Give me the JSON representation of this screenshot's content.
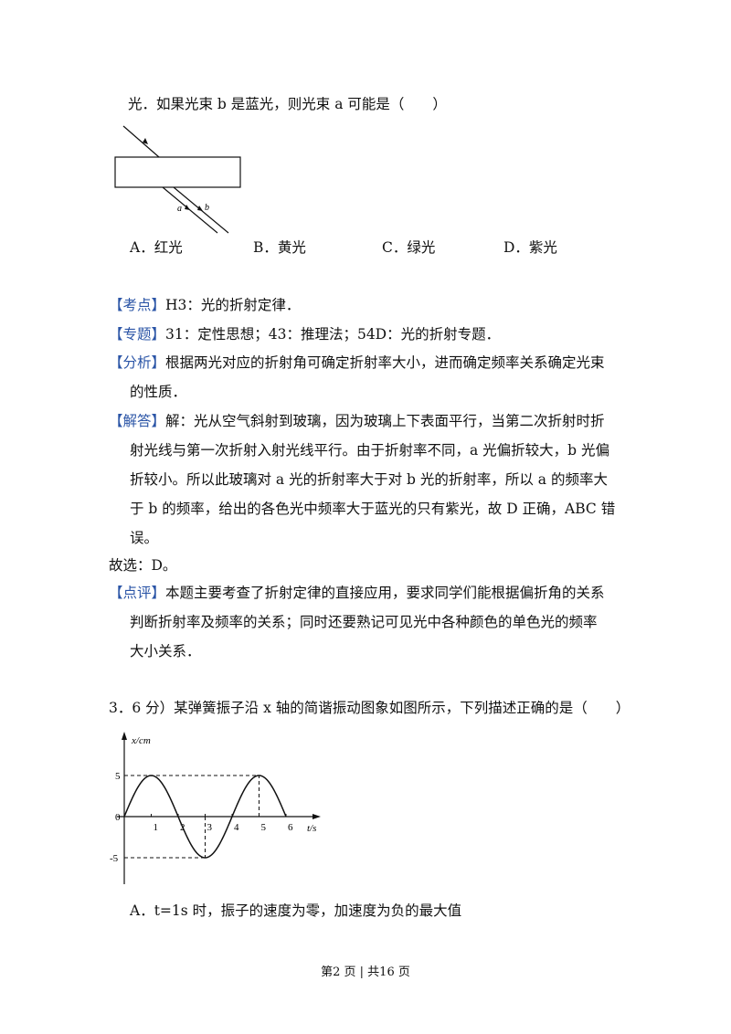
{
  "q2": {
    "stem_tail": "光．如果光束 b 是蓝光，则光束 a 可能是（　　）",
    "diagram": {
      "label_a": "a",
      "label_b": "b"
    },
    "options": [
      "A．红光",
      "B．黄光",
      "C．绿光",
      "D．紫光"
    ]
  },
  "analysis": {
    "kaodian_tag": "【考点】",
    "kaodian_text": "H3：光的折射定律．",
    "zhuanti_tag": "【专题】",
    "zhuanti_text": "31：定性思想；43：推理法；54D：光的折射专题．",
    "fenxi_tag": "【分析】",
    "fenxi_line1": "根据两光对应的折射角可确定折射率大小，进而确定频率关系确定光束",
    "fenxi_line2": "的性质．",
    "jieda_tag": "【解答】",
    "jieda_line1": "解：光从空气斜射到玻璃，因为玻璃上下表面平行，当第二次折射时折",
    "jieda_line2": "射光线与第一次折射入射光线平行。由于折射率不同，a 光偏折较大，b 光偏",
    "jieda_line3": "折较小。所以此玻璃对 a 光的折射率大于对 b 光的折射率，所以 a 的频率大",
    "jieda_line4": "于 b 的频率，给出的各色光中频率大于蓝光的只有紫光，故 D 正确，ABC 错",
    "jieda_line5": "误。",
    "answer": "故选：D。",
    "dianping_tag": "【点评】",
    "dianping_line1": "本题主要考查了折射定律的直接应用，要求同学们能根据偏折角的关系",
    "dianping_line2": "判断折射率及频率的关系；同时还要熟记可见光中各种颜色的单色光的频率",
    "dianping_line3": "大小关系．"
  },
  "q3": {
    "stem": "3．6 分）某弹簧振子沿 x 轴的简谐振动图象如图所示，下列描述正确的是（　　）",
    "option_a": "A．t=1s 时，振子的速度为零，加速度为负的最大值"
  },
  "chart_data": {
    "type": "line",
    "xlabel": "t/s",
    "ylabel": "x/cm",
    "x_ticks": [
      "1",
      "2",
      "3",
      "4",
      "5",
      "6"
    ],
    "y_ticks": [
      "5",
      "0",
      "-5"
    ],
    "series": [
      {
        "x": [
          0,
          0.5,
          1,
          1.5,
          2,
          2.5,
          3,
          3.5,
          4,
          4.5,
          5,
          5.5,
          6
        ],
        "y": [
          0,
          3.54,
          5,
          3.54,
          0,
          -3.54,
          -5,
          -3.54,
          0,
          3.54,
          5,
          3.54,
          0
        ]
      }
    ],
    "xlim": [
      0,
      7
    ],
    "ylim": [
      -7,
      8
    ]
  },
  "footer": {
    "page": "第2 页 | 共16 页"
  }
}
